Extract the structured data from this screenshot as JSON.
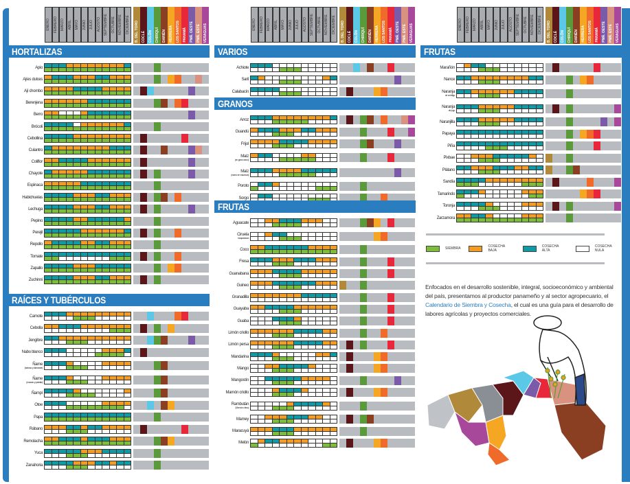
{
  "months": [
    "ENERO",
    "FEBRERO",
    "MARZO",
    "ABRIL",
    "MAYO",
    "JUNIO",
    "JULIO",
    "AGOSTO",
    "SEPTIEMBRE",
    "OCTUBRE",
    "NOVIEMBRE",
    "DICIEMBRE"
  ],
  "provinces": [
    {
      "name": "B. DEL TORO",
      "color": "#b08a3a"
    },
    {
      "name": "COCLÉ",
      "color": "#5a1618"
    },
    {
      "name": "COLÓN",
      "color": "#5bc8e8"
    },
    {
      "name": "CHIRIQUÍ",
      "color": "#5a9a3a"
    },
    {
      "name": "DARIÉN",
      "color": "#8a3f22"
    },
    {
      "name": "HERRERA",
      "color": "#f5a623"
    },
    {
      "name": "LOS SANTOS",
      "color": "#f06a2a"
    },
    {
      "name": "PANAMÁ",
      "color": "#e8283a"
    },
    {
      "name": "PMÁ. OESTE",
      "color": "#7b5aaa"
    },
    {
      "name": "PMÁ. ESTE",
      "color": "#d8927f"
    },
    {
      "name": "VERAGUAS",
      "color": "#a8489a"
    }
  ],
  "columns": [
    {
      "sections": [
        {
          "title": "HORTALIZAS",
          "rows": [
            {
              "name": "Apio",
              "top": "hhhbbbbbbbbh",
              "bottom": "ssssssssssss",
              "provinces": [
                3
              ]
            },
            {
              "name": "Ajíes dulces",
              "top": "bhhhbbbhhbbb",
              "bottom": "ssssssssssss",
              "provinces": [
                3,
                5,
                6,
                9
              ]
            },
            {
              "name": "Ají chombo",
              "top": "bbbbhhhhbbbb",
              "bottom": "ssssssssssss",
              "provinces": [
                1,
                2,
                8
              ]
            },
            {
              "name": "Berenjena",
              "top": "bbbbbbhhhhhh",
              "bottom": "ssssssssssss",
              "provinces": [
                3,
                4,
                6,
                7
              ]
            },
            {
              "name": "Berro",
              "top": "bbnnnbhhhhhh",
              "bottom": "ssssssssssss",
              "provinces": [
                8
              ]
            },
            {
              "name": "Brócoli",
              "top": "hhhhnbbbbbbh",
              "bottom": "ssssssssssss",
              "provinces": [
                3
              ]
            },
            {
              "name": "Cebollina",
              "top": "hhhhbbbbbbbb",
              "bottom": "ssssssssssss",
              "provinces": [
                1,
                7
              ]
            },
            {
              "name": "Culantro",
              "top": "hbbbbbbbbhhh",
              "bottom": "ssssssssssss",
              "provinces": [
                1,
                4,
                8,
                9
              ]
            },
            {
              "name": "Coliflor",
              "top": "bbhhhhbbbbbb",
              "bottom": "ssssssssssss",
              "provinces": [
                1,
                8
              ]
            },
            {
              "name": "Chayote",
              "top": "hbbbbbhhhhhh",
              "bottom": "ssssssssssss",
              "provinces": [
                1,
                3,
                8
              ]
            },
            {
              "name": "Espinaca",
              "top": "bbbbbhhhhhhh",
              "bottom": "ssssssssssss",
              "provinces": [
                3
              ]
            },
            {
              "name": "Habichuelas",
              "top": "hhhhbbbhhbbb",
              "bottom": "ssssssssssss",
              "provinces": [
                1,
                3,
                4,
                6
              ]
            },
            {
              "name": "Lechuga",
              "top": "hhhhbbbhhbbb",
              "bottom": "ssssssssssss",
              "provinces": [
                1,
                3,
                8
              ]
            },
            {
              "name": "Pepino",
              "top": "hhhhbbhhhhhb",
              "bottom": "ssssssssssss",
              "provinces": [
                3
              ]
            },
            {
              "name": "Perejil",
              "top": "hhhhhbbbbbbh",
              "bottom": "ssssssssssss",
              "provinces": [
                1,
                3,
                6
              ]
            },
            {
              "name": "Repollo",
              "top": "bhhhhbbhhbbb",
              "bottom": "ssssssssssss",
              "provinces": [
                3
              ]
            },
            {
              "name": "Tomate",
              "top": "hhhhhhhhhhhh",
              "bottom": "ssnnnnnnnsss",
              "provinces": [
                1,
                3,
                6
              ]
            },
            {
              "name": "Zapallo",
              "top": "hhhhbbbhhhhh",
              "bottom": "ssssssssssss",
              "provinces": [
                3,
                5,
                6
              ]
            },
            {
              "name": "Zuchinni",
              "top": "hhhhbbbhhbbb",
              "bottom": "ssssssssssss",
              "provinces": [
                1,
                3
              ]
            }
          ]
        },
        {
          "title": "RAÍCES Y TUBÉRCULOS",
          "rows": [
            {
              "name": "Camote",
              "top": "hhhbbbbbbbbb",
              "bottom": "nnnnsssnnnnn",
              "provinces": [
                2,
                6,
                7
              ]
            },
            {
              "name": "Cebolla",
              "top": "bbhhhbbbbbbb",
              "bottom": "nnnnnnnnnsss",
              "provinces": [
                1,
                3,
                5
              ]
            },
            {
              "name": "Jengibre",
              "top": "hhbbbbbbbbbb",
              "bottom": "nnnsssnnnnnn",
              "provinces": [
                2,
                3,
                4,
                8
              ]
            },
            {
              "name": "Nabo blanco",
              "top": "hhhnnnnnbbbh",
              "bottom": "nnnnnnnssssn",
              "provinces": [
                1
              ]
            },
            {
              "name": "Ñame",
              "sub": "(baboso y diamante)",
              "top": "hhhbnnnnbbbb",
              "bottom": "nnnsssnnnnnn",
              "provinces": [
                3,
                4
              ]
            },
            {
              "name": "Ñame",
              "sub": "(morado y palmito)",
              "top": "hhhbnnnnbbbb",
              "bottom": "nnnsssnnnnnn",
              "provinces": [
                3,
                4
              ]
            },
            {
              "name": "Ñampí",
              "top": "hhhhbnnnnnnb",
              "bottom": "nnnssssnnnnn",
              "provinces": [
                3,
                4
              ]
            },
            {
              "name": "Otoe",
              "top": "hhhnnnnnbbbb",
              "bottom": "nnnssssssssn",
              "provinces": [
                2,
                4,
                5
              ]
            },
            {
              "name": "Papa",
              "top": "hhhhhhhhhhhh",
              "bottom": "ssssssssssss",
              "provinces": [
                3
              ]
            },
            {
              "name": "Rábano",
              "top": "bbbhhbhhbbbb",
              "bottom": "nnnsssnnnnnn",
              "provinces": [
                1,
                7
              ]
            },
            {
              "name": "Remolacha",
              "top": "bbhhhbhhhbbb",
              "bottom": "ssssssssssss",
              "provinces": [
                3,
                4,
                5
              ]
            },
            {
              "name": "Yuca",
              "top": "hhhhhbbbhhhh",
              "bottom": "nnnsssnnnnnn",
              "provinces": [
                3
              ]
            },
            {
              "name": "Zanahoria",
              "top": "hhhhbbbhhbhh",
              "bottom": "nnnsssnnnnnn",
              "provinces": [
                3
              ]
            }
          ]
        }
      ]
    },
    {
      "sections": [
        {
          "title": "VARIOS",
          "rows": [
            {
              "name": "Achiote",
              "top": "hhhnnnnnnnnn",
              "bottom": "nnnnsssnnnnn",
              "provinces": [
                2,
                4,
                7
              ]
            },
            {
              "name": "Saril",
              "top": "hbnnnnnnnnbh",
              "bottom": "nnnnsssnnnnn",
              "provinces": [
                8
              ]
            },
            {
              "name": "Calabacín",
              "top": "hhhhnnnnnnnn",
              "bottom": "nnnnsssnnnnn",
              "provinces": [
                1,
                5,
                6
              ]
            }
          ]
        },
        {
          "title": "GRANOS",
          "rows": [
            {
              "name": "Arroz",
              "top": "hhhbbbbbbbbh",
              "bottom": "nnnsssssnnnn",
              "provinces": [
                1,
                3,
                4,
                6,
                9,
                10
              ]
            },
            {
              "name": "Guandú",
              "top": "bhhhbbbhhbbb",
              "bottom": "nnnsssnnnnnn",
              "provinces": [
                3,
                7,
                10
              ]
            },
            {
              "name": "Frijol",
              "top": "bbbbhhhhbbbb",
              "bottom": "nnnsssnnnnnn",
              "provinces": [
                3,
                4,
                8
              ]
            },
            {
              "name": "Maíz",
              "sub": "(en grano seco)",
              "top": "bhhnnnnbbnnn",
              "bottom": "nnnnsssssnnn",
              "provinces": [
                3,
                7
              ]
            },
            {
              "name": "Maíz",
              "sub": "(nuevo en mazorca)",
              "top": "hhhbbbbhhhhh",
              "bottom": "nnnnsssssnnn",
              "provinces": [
                8
              ]
            },
            {
              "name": "Poroto",
              "top": "nhhbnnnnnnnn",
              "bottom": "snnnnnnnnsss",
              "provinces": [
                3
              ]
            },
            {
              "name": "Sorgo",
              "top": "nhhnnnnnnnnn",
              "bottom": "nnnnnnnnsssn",
              "provinces": [
                3,
                6
              ]
            }
          ]
        },
        {
          "title": "FRUTAS",
          "rows": [
            {
              "name": "Aguacate",
              "top": "nnbbhhhbbbnn",
              "bottom": "nnnssssnnnnn",
              "provinces": [
                3,
                4,
                5,
                7
              ]
            },
            {
              "name": "Ciruela",
              "sub": "traqueadora",
              "top": "nnbhhnnnnnnn",
              "bottom": "nnnnsssnnnnn",
              "provinces": [
                5,
                6
              ]
            },
            {
              "name": "Coco",
              "top": "bbhhhhhhbbbb",
              "bottom": "ssssssssssss",
              "provinces": [
                3
              ]
            },
            {
              "name": "Fresa",
              "top": "hhhbbbhhhbbb",
              "bottom": "nnnsssnnnnnn",
              "provinces": [
                3,
                7
              ]
            },
            {
              "name": "Guanabana",
              "top": "bbbhhhhbbbbb",
              "bottom": "nnnnsssnnnnn",
              "provinces": [
                3,
                7
              ]
            },
            {
              "name": "Guineo",
              "top": "bbbhhhhhhbbb",
              "bottom": "nnnnsssnnnnn",
              "provinces": [
                0,
                3
              ]
            },
            {
              "name": "Granadilla",
              "top": "bbbbbbbhhhhh",
              "bottom": "nnnnnnnnnnnn",
              "provinces": [
                3,
                7
              ]
            },
            {
              "name": "Guayaba",
              "top": "bbhhhhbbbbbb",
              "bottom": "nnnnsssnnnnn",
              "provinces": [
                3,
                7
              ]
            },
            {
              "name": "Guaba",
              "top": "nnnhhhbnnnnn",
              "bottom": "nnnnsssnnnnn",
              "provinces": [
                3,
                7
              ]
            },
            {
              "name": "Limón criollo",
              "top": "bbbbbbhhhhbb",
              "bottom": "nnnsssnnnnnn",
              "provinces": [
                3,
                6
              ]
            },
            {
              "name": "Limón persa",
              "top": "bbbbbbhhhhbb",
              "bottom": "nnnsssnnnnnn",
              "provinces": [
                1,
                3,
                7
              ]
            },
            {
              "name": "Mandarina",
              "top": "hhhbnnnnnbbh",
              "bottom": "nnnsssnnnnnn",
              "provinces": [
                1,
                5,
                6
              ]
            },
            {
              "name": "Mango",
              "top": "nnbbhhhhbnnn",
              "bottom": "nnnsssnnnnnn",
              "provinces": [
                1,
                5,
                6
              ]
            },
            {
              "name": "Mangostín",
              "top": "nnhhhhhbbbbn",
              "bottom": "nnnsssnnnnnn",
              "provinces": [
                3,
                8
              ]
            },
            {
              "name": "Mamón criollo",
              "top": "nnnbhhhbnnnn",
              "bottom": "nnnsssnnnnnn",
              "provinces": [
                1,
                5,
                6
              ]
            },
            {
              "name": "Rambután",
              "sub": "(Mamón chino)",
              "top": "nnnnnbhhhhbn",
              "bottom": "nnnsssnnnnnn",
              "provinces": [
                3
              ]
            },
            {
              "name": "Mamey",
              "top": "nnbbbhhhbbnn",
              "bottom": "nnnsssnnnnnn",
              "provinces": [
                1,
                3,
                4
              ]
            },
            {
              "name": "Maracuyá",
              "top": "bbbhhhbbbbbb",
              "bottom": "nnnsssnnnnnn",
              "provinces": [
                3
              ]
            },
            {
              "name": "Melón",
              "top": "nbhhbbbbnnnn",
              "bottom": "snnnnnnnnnss",
              "provinces": [
                1,
                5,
                6
              ]
            }
          ]
        }
      ]
    },
    {
      "sections": [
        {
          "title": "FRUTAS",
          "rows": [
            {
              "name": "Marañón",
              "top": "nbhhnnnnnnnn",
              "bottom": "nnnsssnnnnnn",
              "provinces": [
                1,
                7
              ]
            },
            {
              "name": "Nance",
              "top": "hhbbbbbbbbhh",
              "bottom": "nnnsssnnnnnn",
              "provinces": [
                3,
                5,
                6
              ]
            },
            {
              "name": "Naranja",
              "sub": "de ombligo",
              "top": "hhbbbbbbhhhh",
              "bottom": "nnnsssnnnnnn",
              "provinces": [
                3
              ]
            },
            {
              "name": "Naranja",
              "sub": "de jugo",
              "top": "hhhbbbbbhhhh",
              "bottom": "nnnsssnnnnnn",
              "provinces": [
                1,
                3,
                10
              ]
            },
            {
              "name": "Naranjilla",
              "top": "hhhbbbbbhhhh",
              "bottom": "nnnsssnnnnnn",
              "provinces": [
                3,
                8,
                10
              ]
            },
            {
              "name": "Papaya",
              "top": "hhhhhhhhhhhh",
              "bottom": "nnnnnnnnnnnn",
              "provinces": [
                3,
                5,
                6,
                7
              ]
            },
            {
              "name": "Piña",
              "top": "hhhhhhhhhhhh",
              "bottom": "nnnnsssnnnnn",
              "provinces": [
                3,
                7
              ]
            },
            {
              "name": "Pixbae",
              "top": "nnbbbhhhhhbn",
              "bottom": "nnnsssnnnnnn",
              "provinces": [
                0,
                3
              ]
            },
            {
              "name": "Plátano",
              "top": "hhbbbhhhbbhh",
              "bottom": "nnnsssnnnnnn",
              "provinces": [
                0,
                3,
                4
              ]
            },
            {
              "name": "Sandía",
              "top": "hhhhbbbbbbbb",
              "bottom": "sssnnnnnnsss",
              "provinces": [
                1,
                6,
                10
              ]
            },
            {
              "name": "Tamarindo",
              "top": "hhhbnnnnnbbb",
              "bottom": "snnnnnnnnnss",
              "provinces": [
                5,
                6,
                7
              ]
            },
            {
              "name": "Toronja",
              "top": "hhhhbnnnnbbb",
              "bottom": "nnnsssnnnnnn",
              "provinces": [
                1,
                3,
                10
              ]
            },
            {
              "name": "Zarzamora",
              "top": "bbhhbnnnnbbb",
              "bottom": "ssssssssssss",
              "provinces": [
                3
              ]
            }
          ]
        }
      ]
    }
  ],
  "legend": [
    {
      "label": "SIEMBRA",
      "color": "#7cbd3a"
    },
    {
      "label": "COSECHA BAJA",
      "color": "#f39c24"
    },
    {
      "label": "COSECHA ALTA",
      "color": "#0f9aa6"
    },
    {
      "label": "COSECHA NULA",
      "color": "#ffffff"
    }
  ],
  "intro": {
    "before": "Enfocados en el desarrollo sostenible, integral, socioeconómico y ambiental del país, presentamos al productor panameño y al sector agropecuario, el ",
    "highlight": "Calendario de Siembra y Cosecha",
    "after": ", el cual es una guía para el desarrollo de labores agrícolas y proyectos comerciales."
  }
}
